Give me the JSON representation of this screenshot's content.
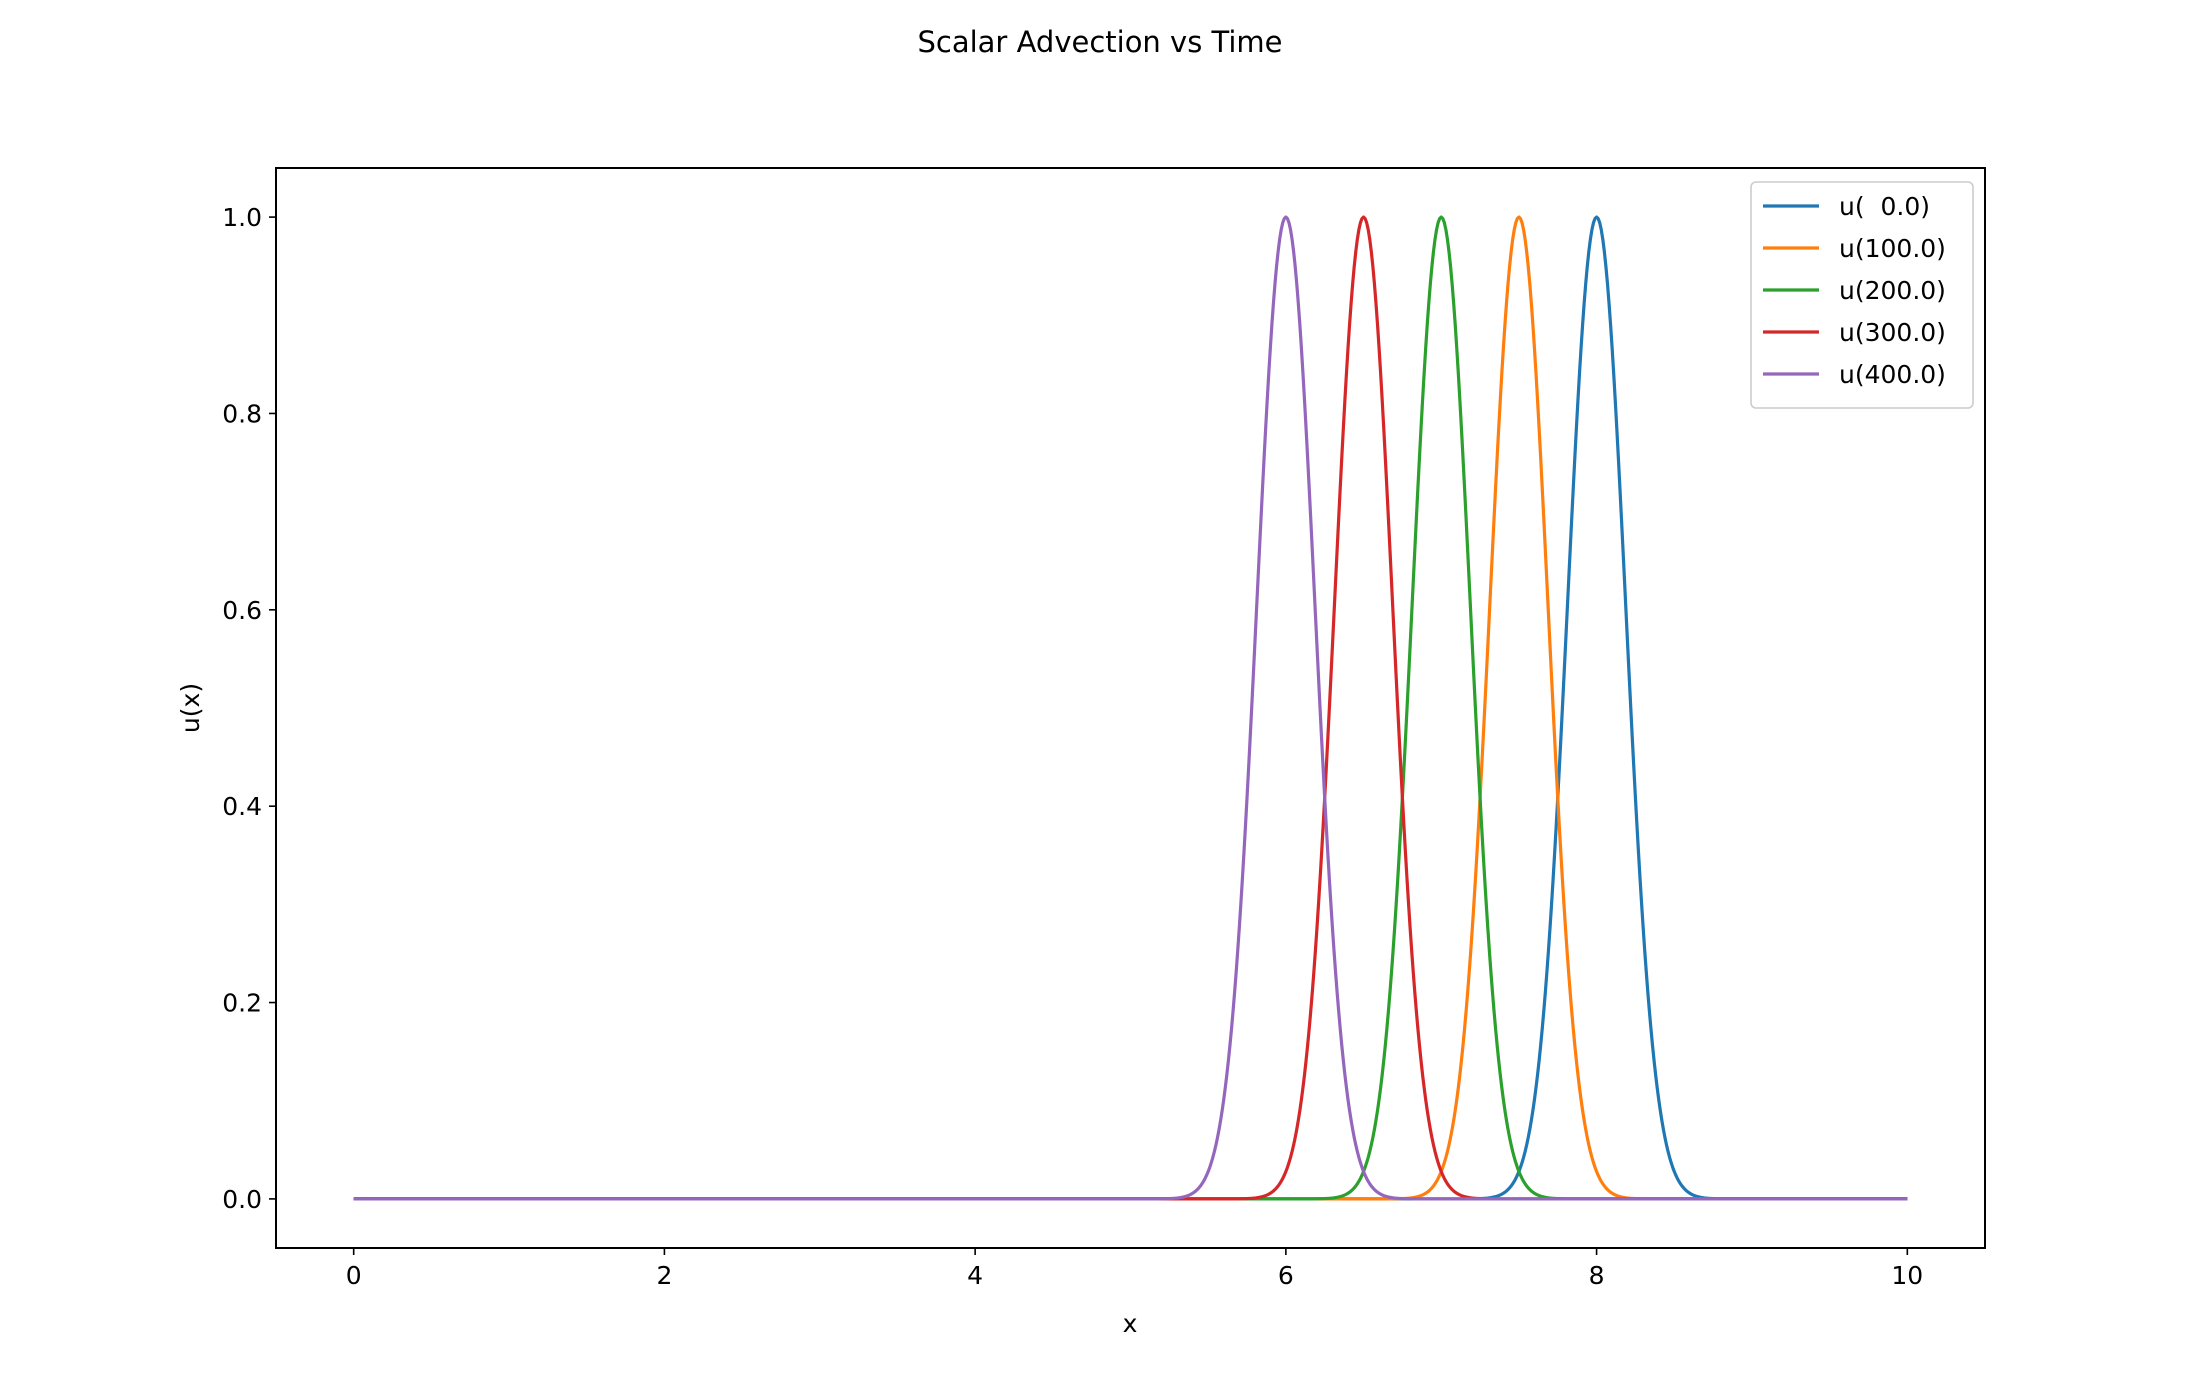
{
  "chart_data": {
    "type": "line",
    "title": "Scalar Advection vs Time",
    "xlabel": "x",
    "ylabel": "u(x)",
    "xlim": [
      -0.5,
      10.5
    ],
    "ylim": [
      -0.05,
      1.05
    ],
    "xticks": [
      0,
      2,
      4,
      6,
      8,
      10
    ],
    "xtick_labels": [
      "0",
      "2",
      "4",
      "6",
      "8",
      "10"
    ],
    "yticks": [
      0.0,
      0.2,
      0.4,
      0.6,
      0.8,
      1.0
    ],
    "ytick_labels": [
      "0.0",
      "0.2",
      "0.4",
      "0.6",
      "0.8",
      "1.0"
    ],
    "grid": false,
    "legend_position": "top-right",
    "x_range": [
      0,
      10
    ],
    "series": [
      {
        "name": "u(  0.0)",
        "color": "#1f77b4",
        "shape": "gaussian",
        "peak_x": 8.0,
        "peak_y": 1.0,
        "half_width_at_half_max": 0.22
      },
      {
        "name": "u(100.0)",
        "color": "#ff7f0e",
        "shape": "gaussian",
        "peak_x": 7.5,
        "peak_y": 1.0,
        "half_width_at_half_max": 0.22
      },
      {
        "name": "u(200.0)",
        "color": "#2ca02c",
        "shape": "gaussian",
        "peak_x": 7.0,
        "peak_y": 1.0,
        "half_width_at_half_max": 0.22
      },
      {
        "name": "u(300.0)",
        "color": "#d62728",
        "shape": "gaussian",
        "peak_x": 6.5,
        "peak_y": 1.0,
        "half_width_at_half_max": 0.22
      },
      {
        "name": "u(400.0)",
        "color": "#9467bd",
        "shape": "gaussian",
        "peak_x": 6.0,
        "peak_y": 1.0,
        "half_width_at_half_max": 0.22
      }
    ]
  }
}
